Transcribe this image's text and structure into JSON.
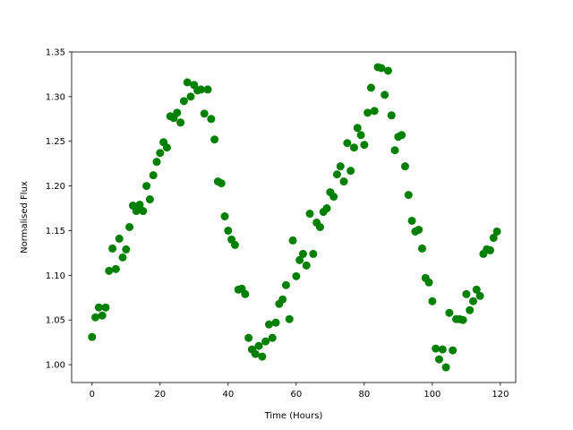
{
  "chart_data": {
    "type": "scatter",
    "title": "",
    "xlabel": "Time (Hours)",
    "ylabel": "Normalised Flux",
    "xlim": [
      -6,
      124.5
    ],
    "ylim": [
      0.98,
      1.35
    ],
    "xticks": [
      0,
      20,
      40,
      60,
      80,
      100,
      120
    ],
    "xtick_labels": [
      "0",
      "20",
      "40",
      "60",
      "80",
      "100",
      "120"
    ],
    "yticks": [
      1.0,
      1.05,
      1.1,
      1.15,
      1.2,
      1.25,
      1.3,
      1.35
    ],
    "ytick_labels": [
      "1.00",
      "1.05",
      "1.10",
      "1.15",
      "1.20",
      "1.25",
      "1.30",
      "1.35"
    ],
    "grid": false,
    "color": "#008000",
    "series": [
      {
        "x": [
          0,
          1,
          2,
          3,
          4,
          5,
          6,
          7,
          8,
          9,
          10,
          11,
          12,
          13,
          14,
          15,
          16,
          17,
          18,
          19,
          20,
          21,
          22,
          23,
          24,
          25,
          26,
          27,
          28,
          29,
          30,
          31,
          32,
          33,
          34,
          35,
          36,
          37,
          38,
          39,
          40,
          41,
          42,
          43,
          44,
          45,
          46,
          47,
          48,
          49,
          50,
          51,
          52,
          53,
          54,
          55,
          56,
          57,
          58,
          59,
          60,
          61,
          62,
          63,
          64,
          65,
          66,
          67,
          68,
          69,
          70,
          71,
          72,
          73,
          74,
          75,
          76,
          77,
          78,
          79,
          80,
          81,
          82,
          83,
          84,
          85,
          86,
          87,
          88,
          89,
          90,
          91,
          92,
          93,
          94,
          95,
          96,
          97,
          98,
          99,
          100,
          101,
          102,
          103,
          104,
          105,
          106,
          107,
          108,
          109,
          110,
          111,
          112,
          113,
          114,
          115,
          116,
          117,
          118,
          119
        ],
        "y": [
          1.031,
          1.053,
          1.064,
          1.055,
          1.064,
          1.105,
          1.13,
          1.107,
          1.141,
          1.12,
          1.129,
          1.154,
          1.178,
          1.172,
          1.179,
          1.172,
          1.2,
          1.185,
          1.212,
          1.227,
          1.237,
          1.249,
          1.243,
          1.278,
          1.276,
          1.282,
          1.271,
          1.295,
          1.316,
          1.3,
          1.313,
          1.307,
          1.308,
          1.281,
          1.308,
          1.275,
          1.252,
          1.205,
          1.203,
          1.166,
          1.15,
          1.14,
          1.134,
          1.084,
          1.085,
          1.079,
          1.03,
          1.017,
          1.012,
          1.021,
          1.009,
          1.026,
          1.045,
          1.03,
          1.047,
          1.068,
          1.073,
          1.089,
          1.051,
          1.139,
          1.099,
          1.117,
          1.124,
          1.111,
          1.169,
          1.124,
          1.159,
          1.154,
          1.171,
          1.175,
          1.193,
          1.188,
          1.213,
          1.222,
          1.205,
          1.248,
          1.217,
          1.243,
          1.265,
          1.257,
          1.246,
          1.282,
          1.31,
          1.284,
          1.333,
          1.332,
          1.302,
          1.329,
          1.279,
          1.24,
          1.255,
          1.257,
          1.222,
          1.19,
          1.161,
          1.149,
          1.151,
          1.13,
          1.097,
          1.092,
          1.071,
          1.018,
          1.006,
          1.017,
          0.997,
          1.058,
          1.016,
          1.051,
          1.051,
          1.05,
          1.079,
          1.061,
          1.071,
          1.084,
          1.077,
          1.124,
          1.129,
          1.128,
          1.142,
          1.149
        ]
      }
    ]
  }
}
